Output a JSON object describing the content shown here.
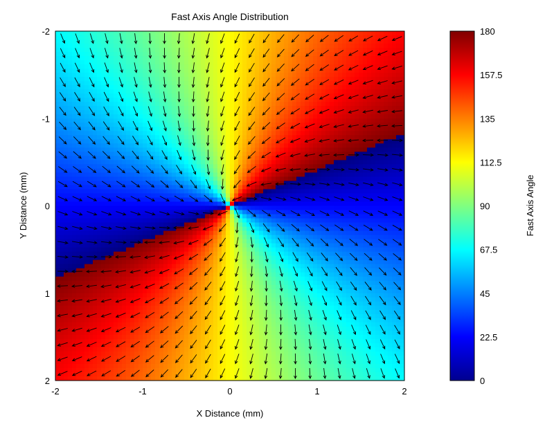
{
  "chart_data": {
    "type": "heatmap",
    "title": "Fast Axis Angle Distribution",
    "xlabel": "X Distance (mm)",
    "ylabel": "Y Distance (mm)",
    "xlim": [
      -2,
      2
    ],
    "ylim": [
      -2,
      2
    ],
    "y_axis_reversed": true,
    "x_ticks": [
      "-2",
      "-1",
      "0",
      "1",
      "2"
    ],
    "y_ticks": [
      "-2",
      "-1",
      "0",
      "1",
      "2"
    ],
    "field": "fast axis angle (degrees) = atan2(y, x) + 22.5, wrapped to 0-180; overlaid with a quiver of arrows pointing along the fast axis",
    "grid": false,
    "colorbar": {
      "label": "Fast Axis Angle",
      "range": [
        0,
        180
      ],
      "colormap": "jet",
      "ticks": [
        "0",
        "22.5",
        "45",
        "67.5",
        "90",
        "112.5",
        "135",
        "157.5",
        "180"
      ]
    },
    "quiver_grid_count": 24,
    "arrow_color": "#000000"
  }
}
